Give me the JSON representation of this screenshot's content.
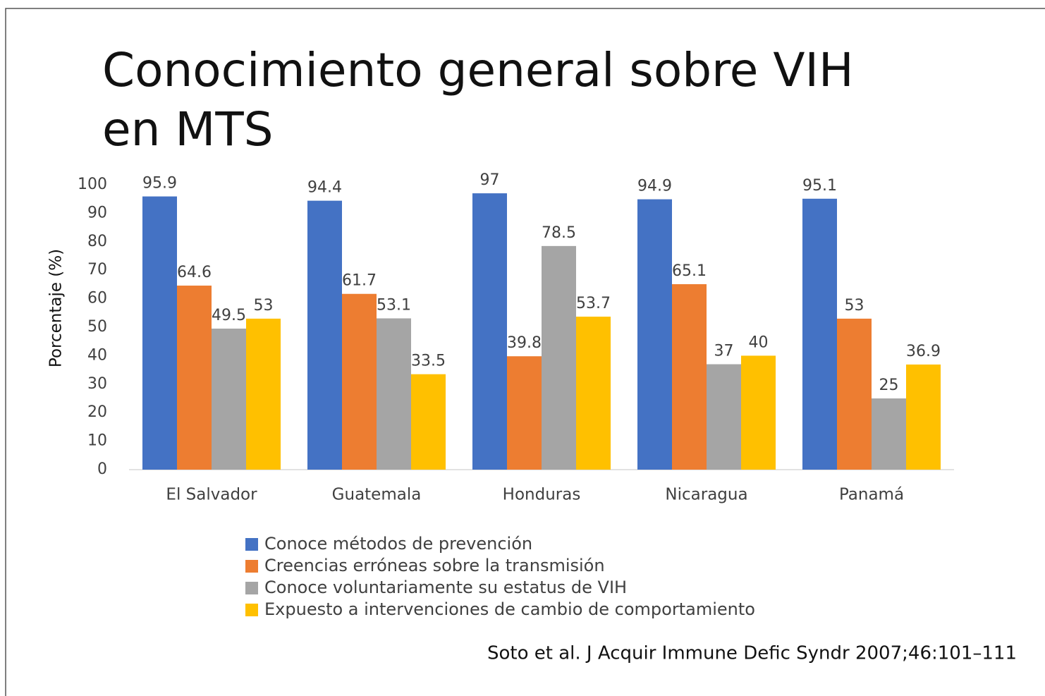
{
  "chart_data": {
    "type": "bar",
    "title_lines": [
      "Conocimiento general sobre VIH",
      "en MTS"
    ],
    "y_axis_label": "Porcentaje (%)",
    "categories": [
      "El Salvador",
      "Guatemala",
      "Honduras",
      "Nicaragua",
      "Panamá"
    ],
    "series": [
      {
        "name": "Conoce métodos de prevención",
        "color": "#4472c4",
        "values": [
          95.9,
          94.4,
          97,
          94.9,
          95.1
        ]
      },
      {
        "name": "Creencias erróneas sobre la transmisión",
        "color": "#ed7d31",
        "values": [
          64.6,
          61.7,
          39.8,
          65.1,
          53
        ]
      },
      {
        "name": "Conoce voluntariamente su estatus de VIH",
        "color": "#a5a5a5",
        "values": [
          49.5,
          53.1,
          78.5,
          37,
          25
        ]
      },
      {
        "name": "Expuesto a intervenciones de cambio de comportamiento",
        "color": "#ffc000",
        "values": [
          53,
          33.5,
          53.7,
          40,
          36.9
        ]
      }
    ],
    "ylim": [
      0,
      100
    ],
    "yticks": [
      0,
      10,
      20,
      30,
      40,
      50,
      60,
      70,
      80,
      90,
      100
    ],
    "grid": false,
    "legend": "bottom",
    "source": "Soto et al. J Acquir Immune Defic Syndr 2007;46:101–111"
  }
}
